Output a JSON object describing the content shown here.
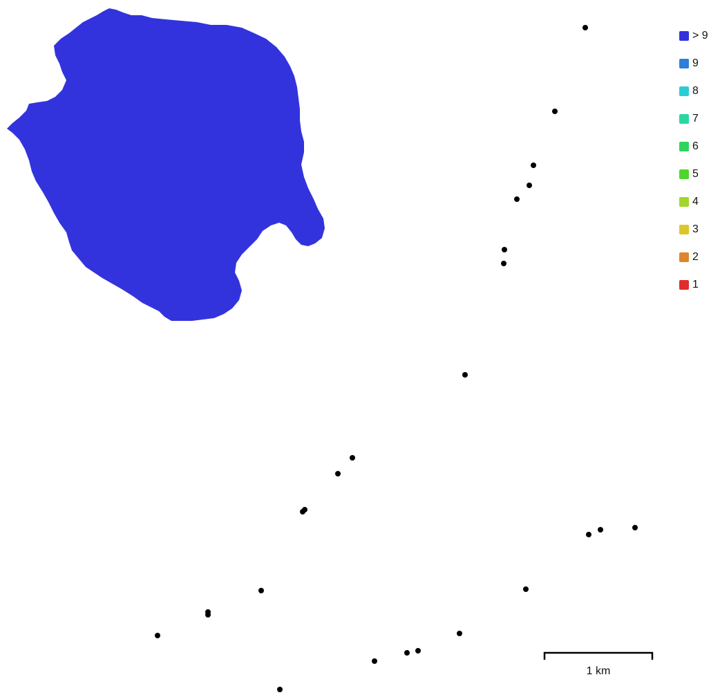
{
  "legend": {
    "items": [
      {
        "label": "> 9",
        "color": "#3333dd"
      },
      {
        "label": "9",
        "color": "#2e7fdb"
      },
      {
        "label": "8",
        "color": "#2ccbd6"
      },
      {
        "label": "7",
        "color": "#2cd6a2"
      },
      {
        "label": "6",
        "color": "#2fd35e"
      },
      {
        "label": "5",
        "color": "#4fd62c"
      },
      {
        "label": "4",
        "color": "#a3d62c"
      },
      {
        "label": "3",
        "color": "#dcc62c"
      },
      {
        "label": "2",
        "color": "#e0852c"
      },
      {
        "label": "1",
        "color": "#de2c2c"
      }
    ]
  },
  "coverage_color": "#3333dd",
  "marker_color": "#000000",
  "scale_bar": {
    "label": "1 km"
  }
}
